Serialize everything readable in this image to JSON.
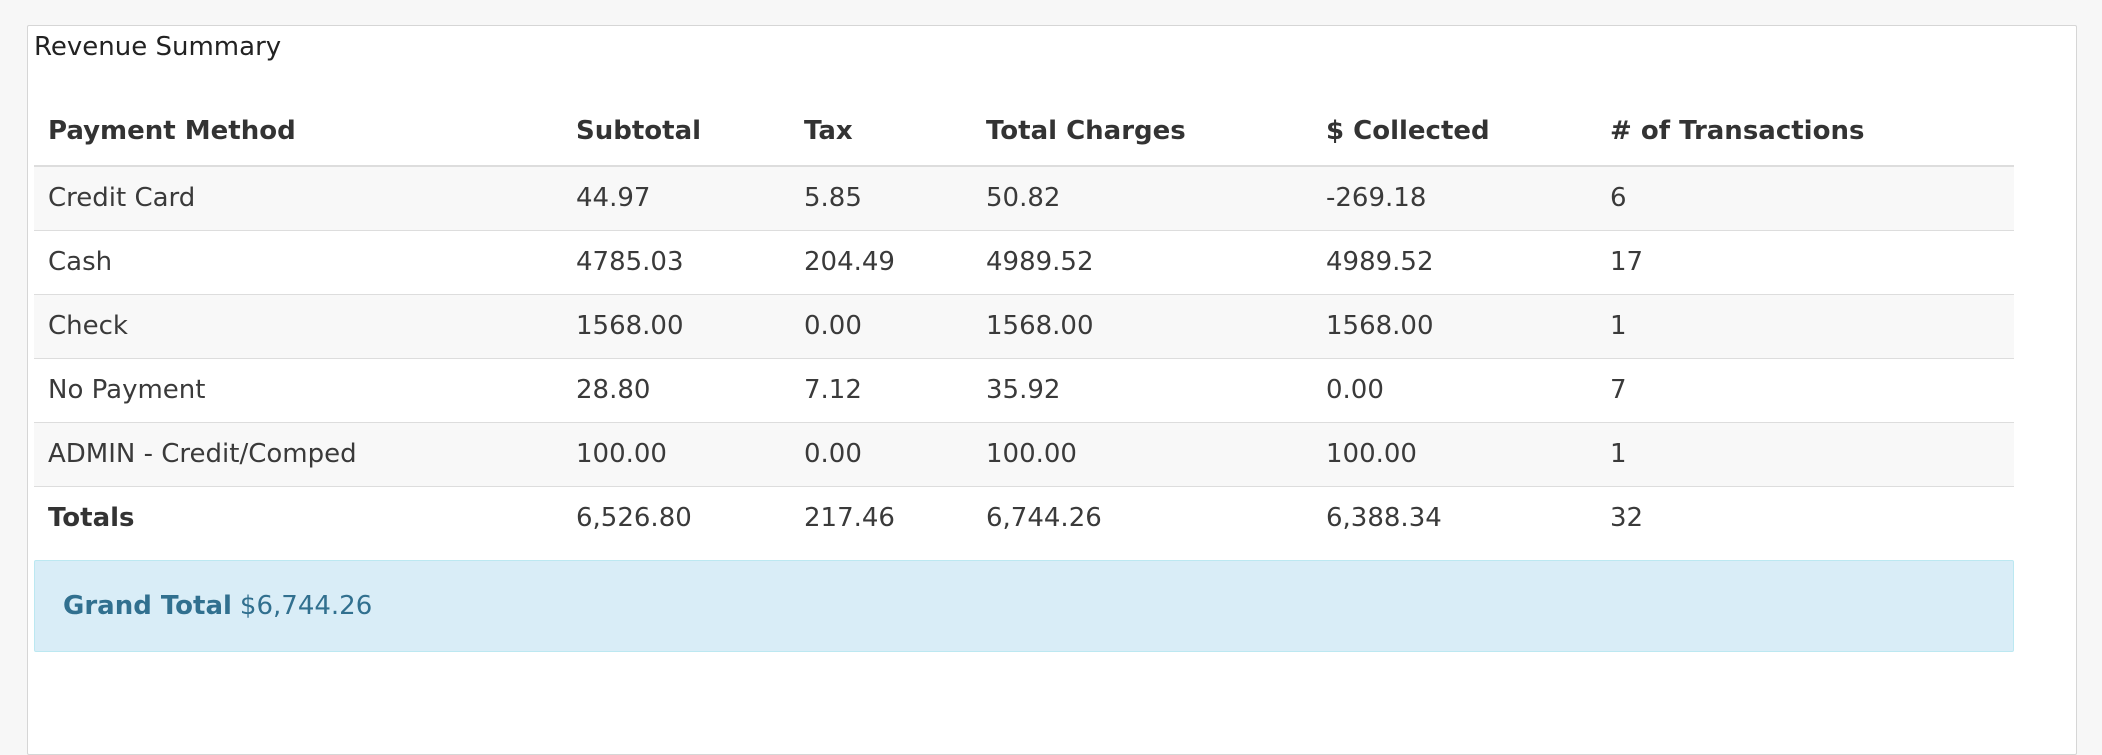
{
  "panel": {
    "title": "Revenue Summary"
  },
  "table": {
    "headers": [
      "Payment Method",
      "Subtotal",
      "Tax",
      "Total Charges",
      "$ Collected",
      "# of Transactions"
    ],
    "rows": [
      [
        "Credit Card",
        "44.97",
        "5.85",
        "50.82",
        "-269.18",
        "6"
      ],
      [
        "Cash",
        "4785.03",
        "204.49",
        "4989.52",
        "4989.52",
        "17"
      ],
      [
        "Check",
        "1568.00",
        "0.00",
        "1568.00",
        "1568.00",
        "1"
      ],
      [
        "No Payment",
        "28.80",
        "7.12",
        "35.92",
        "0.00",
        "7"
      ],
      [
        "ADMIN - Credit/Comped",
        "100.00",
        "0.00",
        "100.00",
        "100.00",
        "1"
      ]
    ],
    "totals": [
      "Totals",
      "6,526.80",
      "217.46",
      "6,744.26",
      "6,388.34",
      "32"
    ]
  },
  "grand_total": {
    "label": "Grand Total",
    "value": "$6,744.26"
  },
  "colors": {
    "alert_background": "#d9edf7",
    "alert_text": "#31708f",
    "row_stripe": "#f8f8f8"
  }
}
